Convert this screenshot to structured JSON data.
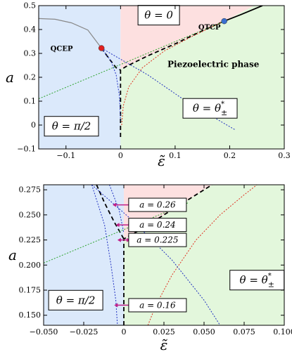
{
  "chart_data": [
    {
      "type": "line",
      "name": "top-panel",
      "xlabel": "ε̃",
      "ylabel": "a",
      "xlim": [
        -0.15,
        0.3
      ],
      "ylim": [
        -0.1,
        0.5
      ],
      "xticks": [
        -0.1,
        0,
        0.1,
        0.2,
        0.3
      ],
      "xtick_labels": [
        "−0.1",
        "0",
        "0.1",
        "0.2",
        "0.3"
      ],
      "yticks": [
        -0.1,
        0,
        0.1,
        0.2,
        0.3,
        0.4,
        0.5
      ],
      "ytick_labels": [
        "−0.1",
        "0",
        "0.1",
        "0.2",
        "0.3",
        "0.4",
        "0.5"
      ],
      "regions": [
        {
          "color": "#dbe9fb",
          "polygon": [
            [
              -0.15,
              -0.1
            ],
            [
              0,
              -0.1
            ],
            [
              0,
              0.5
            ],
            [
              -0.15,
              0.5
            ]
          ]
        },
        {
          "color": "#fde0e0",
          "polygon": [
            [
              0,
              0.235
            ],
            [
              0.19,
              0.435
            ],
            [
              0.245,
              0.5
            ],
            [
              0,
              0.5
            ]
          ]
        },
        {
          "color": "#e3f7dc",
          "polygon": [
            [
              0,
              -0.1
            ],
            [
              0.3,
              -0.1
            ],
            [
              0.3,
              0.5
            ],
            [
              0.245,
              0.5
            ],
            [
              0.19,
              0.435
            ],
            [
              0,
              0.235
            ]
          ]
        }
      ],
      "series": [
        {
          "style": "solid",
          "color": "#888888",
          "width": 1.2,
          "points": [
            [
              -0.15,
              0.446
            ],
            [
              -0.12,
              0.443
            ],
            [
              -0.09,
              0.428
            ],
            [
              -0.06,
              0.398
            ],
            [
              -0.035,
              0.322
            ]
          ]
        },
        {
          "style": "solid",
          "color": "#000000",
          "width": 1.8,
          "points": [
            [
              0.19,
              0.435
            ],
            [
              0.22,
              0.462
            ],
            [
              0.26,
              0.5
            ]
          ]
        },
        {
          "style": "dashed",
          "color": "#000000",
          "width": 1.8,
          "points": [
            [
              0,
              -0.05
            ],
            [
              0,
              0.23
            ],
            [
              0.01,
              0.245
            ],
            [
              0.05,
              0.29
            ],
            [
              0.1,
              0.34
            ],
            [
              0.15,
              0.395
            ],
            [
              0.19,
              0.435
            ]
          ]
        },
        {
          "style": "dashed",
          "color": "#000000",
          "width": 1.8,
          "points": [
            [
              -0.035,
              0.322
            ],
            [
              -0.02,
              0.275
            ],
            [
              -0.008,
              0.24
            ],
            [
              0,
              0.23
            ]
          ]
        },
        {
          "style": "dotted",
          "color": "#2fa52f",
          "width": 1.0,
          "points": [
            [
              -0.15,
              0.11
            ],
            [
              0.19,
              0.435
            ]
          ]
        },
        {
          "style": "dotted",
          "color": "#e03020",
          "width": 1.0,
          "points": [
            [
              0.002,
              0.0
            ],
            [
              0.005,
              0.08
            ],
            [
              0.015,
              0.16
            ],
            [
              0.04,
              0.24
            ],
            [
              0.08,
              0.31
            ],
            [
              0.13,
              0.37
            ],
            [
              0.19,
              0.435
            ]
          ]
        },
        {
          "style": "dotted",
          "color": "#2030c0",
          "width": 1.0,
          "points": [
            [
              -0.035,
              0.322
            ],
            [
              0.05,
              0.21
            ],
            [
              0.12,
              0.1
            ],
            [
              0.18,
              0.02
            ],
            [
              0.21,
              -0.02
            ]
          ]
        },
        {
          "style": "dotted",
          "color": "#2030c0",
          "width": 1.0,
          "points": [
            [
              -0.035,
              0.322
            ],
            [
              -0.018,
              0.27
            ],
            [
              -0.008,
              0.21
            ],
            [
              -0.002,
              0.12
            ],
            [
              0.0,
              0.02
            ]
          ]
        }
      ],
      "markers": [
        {
          "x": -0.035,
          "y": 0.322,
          "color": "#e02020",
          "label": "QCEP",
          "label_x": -0.108,
          "label_y": 0.318
        },
        {
          "x": 0.19,
          "y": 0.435,
          "color": "#3a6fd0",
          "label": "QTCP",
          "label_x": 0.163,
          "label_y": 0.407
        }
      ],
      "boxes": [
        {
          "text": "θ = 0",
          "x": 0.07,
          "y": 0.46
        },
        {
          "text": "θ = π/2",
          "x": -0.09,
          "y": -0.005
        },
        {
          "text": "θ = θ*±",
          "x": 0.164,
          "y": 0.07
        }
      ],
      "annotations": [
        {
          "text": "Piezoelectric phase",
          "x": 0.17,
          "y": 0.255
        }
      ]
    },
    {
      "type": "line",
      "name": "bottom-panel",
      "xlabel": "ε̃",
      "ylabel": "a",
      "xlim": [
        -0.05,
        0.1
      ],
      "ylim": [
        0.14,
        0.28
      ],
      "xticks": [
        -0.05,
        -0.025,
        0,
        0.025,
        0.05,
        0.075,
        0.1
      ],
      "xtick_labels": [
        "−0.050",
        "−0.025",
        "0",
        "0.025",
        "0.050",
        "0.075",
        "0.100"
      ],
      "yticks": [
        0.15,
        0.175,
        0.2,
        0.225,
        0.25,
        0.275
      ],
      "ytick_labels": [
        "0.150",
        "0.175",
        "0.200",
        "0.225",
        "0.250",
        "0.275"
      ],
      "regions": [
        {
          "color": "#dbe9fb",
          "polygon": [
            [
              -0.05,
              0.14
            ],
            [
              0,
              0.14
            ],
            [
              0,
              0.28
            ],
            [
              -0.05,
              0.28
            ]
          ]
        },
        {
          "color": "#fde0e0",
          "polygon": [
            [
              0,
              0.226
            ],
            [
              0.01,
              0.235
            ],
            [
              0.03,
              0.255
            ],
            [
              0.055,
              0.28
            ],
            [
              0,
              0.28
            ]
          ]
        },
        {
          "color": "#e3f7dc",
          "polygon": [
            [
              0,
              0.14
            ],
            [
              0.1,
              0.14
            ],
            [
              0.1,
              0.28
            ],
            [
              0.055,
              0.28
            ],
            [
              0.03,
              0.255
            ],
            [
              0.01,
              0.235
            ],
            [
              0,
              0.226
            ]
          ]
        }
      ],
      "series": [
        {
          "style": "dashed",
          "color": "#000000",
          "width": 1.8,
          "points": [
            [
              0,
              0.14
            ],
            [
              0,
              0.226
            ],
            [
              0.01,
              0.235
            ],
            [
              0.03,
              0.255
            ],
            [
              0.055,
              0.28
            ]
          ]
        },
        {
          "style": "dashed",
          "color": "#000000",
          "width": 1.8,
          "points": [
            [
              -0.017,
              0.28
            ],
            [
              -0.012,
              0.262
            ],
            [
              -0.006,
              0.243
            ],
            [
              0,
              0.226
            ]
          ]
        },
        {
          "style": "dotted",
          "color": "#2fa52f",
          "width": 1.0,
          "points": [
            [
              -0.05,
              0.202
            ],
            [
              0.04,
              0.262
            ]
          ]
        },
        {
          "style": "dotted",
          "color": "#e03020",
          "width": 1.0,
          "points": [
            [
              0.015,
              0.14
            ],
            [
              0.02,
              0.16
            ],
            [
              0.03,
              0.19
            ],
            [
              0.045,
              0.225
            ],
            [
              0.06,
              0.25
            ],
            [
              0.075,
              0.27
            ],
            [
              0.083,
              0.28
            ]
          ]
        },
        {
          "style": "dotted",
          "color": "#2030c0",
          "width": 1.0,
          "points": [
            [
              -0.02,
              0.28
            ],
            [
              0.005,
              0.245
            ],
            [
              0.03,
              0.205
            ],
            [
              0.05,
              0.165
            ],
            [
              0.06,
              0.14
            ]
          ]
        },
        {
          "style": "dotted",
          "color": "#2030c0",
          "width": 1.0,
          "points": [
            [
              -0.02,
              0.28
            ],
            [
              -0.012,
              0.24
            ],
            [
              -0.008,
              0.2
            ],
            [
              -0.005,
              0.165
            ],
            [
              -0.004,
              0.14
            ]
          ]
        },
        {
          "style": "dotted",
          "color": "#2030c0",
          "width": 1.0,
          "points": [
            [
              -0.009,
              0.28
            ],
            [
              -0.003,
              0.255
            ],
            [
              0.0,
              0.232
            ]
          ]
        }
      ],
      "arrows": [
        {
          "y": 0.26,
          "x0": -0.007,
          "x1": 0.007
        },
        {
          "y": 0.24,
          "x0": -0.005,
          "x1": 0.005
        },
        {
          "y": 0.225,
          "x0": -0.004,
          "x1": 0.004
        },
        {
          "y": 0.16,
          "x0": -0.006,
          "x1": 0.006
        }
      ],
      "boxes": [
        {
          "text": "a = 0.26",
          "x": 0.021,
          "y": 0.26
        },
        {
          "text": "a = 0.24",
          "x": 0.021,
          "y": 0.24
        },
        {
          "text": "a = 0.225",
          "x": 0.021,
          "y": 0.225
        },
        {
          "text": "a = 0.16",
          "x": 0.021,
          "y": 0.16
        },
        {
          "text": "θ = π/2",
          "x": -0.03,
          "y": 0.165
        },
        {
          "text": "θ = θ*±",
          "x": 0.083,
          "y": 0.185
        }
      ]
    }
  ]
}
